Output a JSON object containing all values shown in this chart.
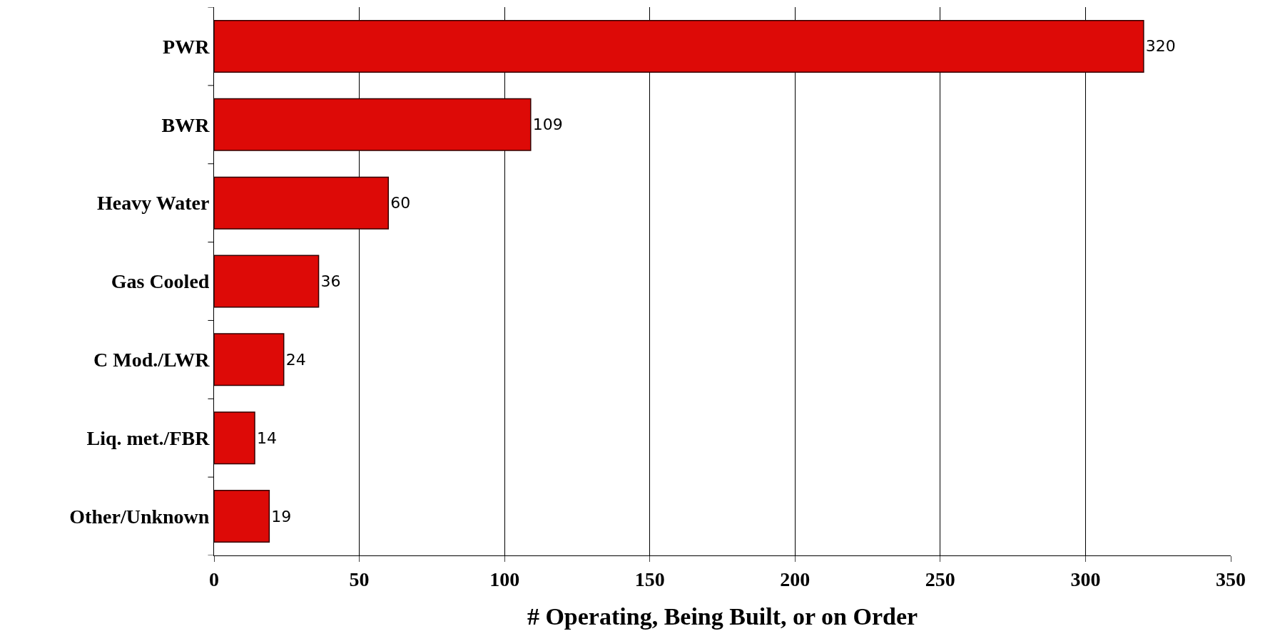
{
  "chart_data": {
    "type": "bar",
    "orientation": "horizontal",
    "xlabel": "# Operating, Being Built, or on Order",
    "categories": [
      "PWR",
      "BWR",
      "Heavy Water",
      "Gas Cooled",
      "C Mod./LWR",
      "Liq. met./FBR",
      "Other/Unknown"
    ],
    "values": [
      320,
      109,
      60,
      36,
      24,
      14,
      19
    ],
    "color": "#dd0a07",
    "xlim": [
      0,
      350
    ],
    "xticks": [
      0,
      50,
      100,
      150,
      200,
      250,
      300,
      350
    ],
    "grid": "x",
    "data_labels": true
  }
}
